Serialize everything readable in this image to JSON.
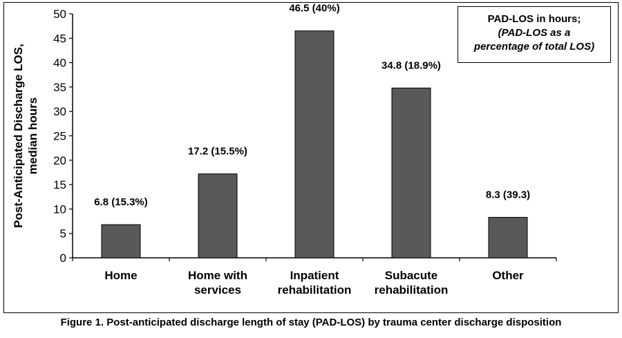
{
  "figure_caption": "Figure 1.  Post-anticipated discharge length of stay (PAD-LOS) by trauma center discharge disposition",
  "legend_note": {
    "line1": "PAD-LOS in hours;",
    "line2": "(PAD-LOS as a",
    "line3": "percentage of total LOS)"
  },
  "chart_data": {
    "type": "bar",
    "title": "",
    "ylabel_lines": [
      "Post-Anticipated Discharge LOS,",
      "median hours"
    ],
    "xlabel": "",
    "ylim": [
      0,
      50
    ],
    "yticks": [
      0,
      5,
      10,
      15,
      20,
      25,
      30,
      35,
      40,
      45,
      50
    ],
    "grid": false,
    "bar_color": "#595959",
    "categories": [
      [
        "Home"
      ],
      [
        "Home with",
        "services"
      ],
      [
        "Inpatient",
        "rehabilitation"
      ],
      [
        "Subacute",
        "rehabilitation"
      ],
      [
        "Other"
      ]
    ],
    "values": [
      6.8,
      17.2,
      46.5,
      34.8,
      8.3
    ],
    "data_labels": [
      "6.8 (15.3%)",
      "17.2 (15.5%)",
      "46.5 (40%)",
      "34.8 (18.9%)",
      "8.3 (39.3)"
    ]
  }
}
